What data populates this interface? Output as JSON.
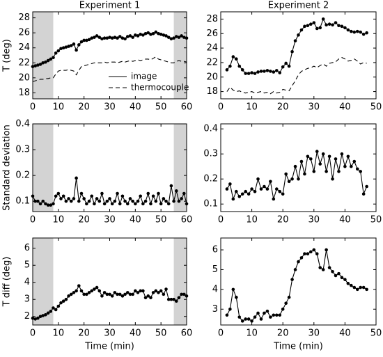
{
  "chart_data": [
    {
      "type": "line",
      "title": "Experiment 1",
      "ylabel": "T (deg)",
      "x": [
        0,
        1,
        2,
        3,
        4,
        5,
        6,
        7,
        8,
        9,
        10,
        11,
        12,
        13,
        14,
        15,
        16,
        17,
        18,
        19,
        20,
        21,
        22,
        23,
        24,
        25,
        26,
        27,
        28,
        29,
        30,
        31,
        32,
        33,
        34,
        35,
        36,
        37,
        38,
        39,
        40,
        41,
        42,
        43,
        44,
        45,
        46,
        47,
        48,
        49,
        50,
        51,
        52,
        53,
        54,
        55,
        56,
        57,
        58,
        59,
        60
      ],
      "series": [
        {
          "name": "image",
          "color": "#000000",
          "style": "solid",
          "markers": true,
          "values": [
            21.5,
            21.6,
            21.7,
            21.8,
            22.0,
            22.1,
            22.3,
            22.5,
            22.7,
            23.3,
            23.6,
            23.9,
            24.0,
            24.1,
            24.2,
            24.3,
            24.5,
            23.7,
            24.4,
            24.8,
            25.0,
            25.0,
            25.1,
            25.3,
            25.4,
            25.6,
            25.4,
            25.2,
            25.3,
            25.3,
            25.4,
            25.3,
            25.4,
            25.3,
            25.5,
            25.3,
            25.2,
            25.5,
            25.6,
            25.4,
            25.7,
            25.6,
            25.8,
            25.7,
            25.9,
            26.0,
            25.8,
            25.9,
            26.1,
            25.9,
            25.8,
            25.7,
            25.6,
            25.4,
            25.2,
            25.3,
            25.5,
            25.4,
            25.6,
            25.4,
            25.3
          ]
        },
        {
          "name": "thermocouple",
          "color": "#000000",
          "style": "dashed",
          "markers": false,
          "values": [
            19.5,
            19.6,
            19.7,
            19.8,
            19.8,
            19.9,
            19.9,
            20.0,
            20.0,
            20.5,
            20.9,
            21.0,
            21.0,
            21.0,
            21.1,
            21.0,
            20.9,
            20.4,
            21.0,
            21.5,
            21.6,
            21.7,
            21.8,
            21.9,
            22.0,
            22.0,
            22.0,
            22.0,
            22.1,
            22.0,
            22.1,
            22.1,
            22.1,
            22.0,
            22.1,
            22.2,
            22.1,
            22.2,
            22.3,
            22.2,
            22.3,
            22.4,
            22.3,
            22.4,
            22.5,
            22.5,
            22.4,
            22.6,
            22.8,
            22.5,
            22.4,
            22.3,
            22.2,
            22.1,
            22.0,
            22.0,
            22.2,
            22.3,
            22.2,
            22.2,
            22.1
          ]
        }
      ],
      "shaded": [
        [
          0,
          8
        ],
        [
          55,
          60
        ]
      ],
      "legend": "lower right",
      "xlim": [
        0,
        60
      ],
      "xticks": [
        0,
        10,
        20,
        30,
        40,
        50,
        60
      ],
      "ylim": [
        17.2,
        28.8
      ],
      "yticks": [
        18,
        20,
        22,
        24,
        26,
        28
      ]
    },
    {
      "type": "line",
      "title": "Experiment 2",
      "x": [
        2,
        3,
        4,
        5,
        6,
        7,
        8,
        9,
        10,
        11,
        12,
        13,
        14,
        15,
        16,
        17,
        18,
        19,
        20,
        21,
        22,
        23,
        24,
        25,
        26,
        27,
        28,
        29,
        30,
        31,
        32,
        33,
        34,
        35,
        36,
        37,
        38,
        39,
        40,
        41,
        42,
        43,
        44,
        45,
        46,
        47
      ],
      "series": [
        {
          "color": "#000000",
          "style": "solid",
          "markers": true,
          "values": [
            21.0,
            21.5,
            22.8,
            22.5,
            21.5,
            21.0,
            20.5,
            20.5,
            20.6,
            20.5,
            20.7,
            20.8,
            20.8,
            20.9,
            20.8,
            20.7,
            20.9,
            20.6,
            21.4,
            21.9,
            21.5,
            23.5,
            25.0,
            25.8,
            26.5,
            27.0,
            27.1,
            27.3,
            27.5,
            26.7,
            26.8,
            28.0,
            27.2,
            27.3,
            27.2,
            27.5,
            27.1,
            27.0,
            26.8,
            26.5,
            26.3,
            26.2,
            26.3,
            26.2,
            25.9,
            26.1
          ]
        },
        {
          "color": "#000000",
          "style": "dashed",
          "markers": false,
          "values": [
            18.0,
            18.6,
            18.2,
            18.0,
            18.1,
            17.9,
            17.8,
            17.9,
            18.0,
            17.8,
            17.9,
            18.0,
            17.8,
            17.9,
            17.7,
            18.0,
            17.8,
            17.9,
            18.3,
            18.2,
            18.1,
            18.8,
            19.5,
            20.3,
            20.8,
            21.0,
            21.2,
            21.3,
            21.5,
            21.3,
            21.6,
            21.8,
            21.5,
            21.9,
            22.0,
            22.1,
            22.5,
            22.7,
            22.5,
            22.2,
            22.3,
            22.5,
            22.2,
            21.8,
            22.0,
            21.9
          ]
        }
      ],
      "xlim": [
        0,
        50
      ],
      "xticks": [
        0,
        10,
        20,
        30,
        40,
        50
      ],
      "ylim": [
        17,
        29
      ],
      "yticks": [
        18,
        20,
        22,
        24,
        26,
        28
      ]
    },
    {
      "type": "line",
      "ylabel": "Standard deviation",
      "x": [
        0,
        1,
        2,
        3,
        4,
        5,
        6,
        7,
        8,
        9,
        10,
        11,
        12,
        13,
        14,
        15,
        16,
        17,
        18,
        19,
        20,
        21,
        22,
        23,
        24,
        25,
        26,
        27,
        28,
        29,
        30,
        31,
        32,
        33,
        34,
        35,
        36,
        37,
        38,
        39,
        40,
        41,
        42,
        43,
        44,
        45,
        46,
        47,
        48,
        49,
        50,
        51,
        52,
        53,
        54,
        55,
        56,
        57,
        58,
        59,
        60
      ],
      "series": [
        {
          "color": "#000000",
          "style": "solid",
          "markers": true,
          "values": [
            0.12,
            0.1,
            0.1,
            0.09,
            0.1,
            0.09,
            0.085,
            0.085,
            0.09,
            0.12,
            0.13,
            0.11,
            0.12,
            0.1,
            0.11,
            0.1,
            0.11,
            0.19,
            0.1,
            0.13,
            0.11,
            0.09,
            0.1,
            0.12,
            0.09,
            0.11,
            0.1,
            0.13,
            0.09,
            0.1,
            0.11,
            0.09,
            0.1,
            0.13,
            0.09,
            0.12,
            0.1,
            0.09,
            0.11,
            0.1,
            0.09,
            0.1,
            0.12,
            0.09,
            0.1,
            0.13,
            0.09,
            0.12,
            0.1,
            0.13,
            0.09,
            0.11,
            0.1,
            0.09,
            0.16,
            0.1,
            0.14,
            0.1,
            0.11,
            0.13,
            0.09
          ]
        }
      ],
      "shaded": [
        [
          0,
          8
        ],
        [
          55,
          60
        ]
      ],
      "xlim": [
        0,
        60
      ],
      "xticks": [
        0,
        10,
        20,
        30,
        40,
        50,
        60
      ],
      "ylim": [
        0.06,
        0.4
      ],
      "yticks": [
        0.1,
        0.2,
        0.3,
        0.4
      ]
    },
    {
      "type": "line",
      "x": [
        2,
        3,
        4,
        5,
        6,
        7,
        8,
        9,
        10,
        11,
        12,
        13,
        14,
        15,
        16,
        17,
        18,
        19,
        20,
        21,
        22,
        23,
        24,
        25,
        26,
        27,
        28,
        29,
        30,
        31,
        32,
        33,
        34,
        35,
        36,
        37,
        38,
        39,
        40,
        41,
        42,
        43,
        44,
        45,
        46,
        47
      ],
      "series": [
        {
          "color": "#000000",
          "style": "solid",
          "markers": true,
          "values": [
            0.16,
            0.18,
            0.12,
            0.15,
            0.13,
            0.14,
            0.15,
            0.14,
            0.16,
            0.15,
            0.2,
            0.16,
            0.17,
            0.16,
            0.19,
            0.12,
            0.16,
            0.15,
            0.14,
            0.22,
            0.19,
            0.2,
            0.25,
            0.2,
            0.27,
            0.22,
            0.29,
            0.28,
            0.23,
            0.31,
            0.26,
            0.3,
            0.23,
            0.29,
            0.2,
            0.28,
            0.23,
            0.3,
            0.25,
            0.29,
            0.25,
            0.27,
            0.24,
            0.23,
            0.14,
            0.17
          ]
        }
      ],
      "xlim": [
        0,
        50
      ],
      "xticks": [
        0,
        10,
        20,
        30,
        40,
        50
      ],
      "ylim": [
        0.07,
        0.42
      ],
      "yticks": [
        0.1,
        0.2,
        0.3,
        0.4
      ]
    },
    {
      "type": "line",
      "ylabel": "T diff (deg)",
      "xlabel": "Time (min)",
      "x": [
        0,
        1,
        2,
        3,
        4,
        5,
        6,
        7,
        8,
        9,
        10,
        11,
        12,
        13,
        14,
        15,
        16,
        17,
        18,
        19,
        20,
        21,
        22,
        23,
        24,
        25,
        26,
        27,
        28,
        29,
        30,
        31,
        32,
        33,
        34,
        35,
        36,
        37,
        38,
        39,
        40,
        41,
        42,
        43,
        44,
        45,
        46,
        47,
        48,
        49,
        50,
        51,
        52,
        53,
        54,
        55,
        56,
        57,
        58,
        59,
        60
      ],
      "series": [
        {
          "color": "#000000",
          "style": "solid",
          "markers": true,
          "values": [
            1.9,
            1.85,
            1.9,
            2.0,
            2.05,
            2.1,
            2.2,
            2.3,
            2.5,
            2.4,
            2.6,
            2.8,
            2.9,
            3.0,
            3.2,
            3.3,
            3.4,
            3.5,
            3.8,
            3.5,
            3.3,
            3.3,
            3.4,
            3.5,
            3.6,
            3.7,
            3.5,
            3.2,
            3.4,
            3.3,
            3.3,
            3.2,
            3.4,
            3.3,
            3.3,
            3.2,
            3.3,
            3.4,
            3.3,
            3.3,
            3.5,
            3.4,
            3.5,
            3.5,
            3.1,
            3.2,
            3.1,
            3.4,
            3.5,
            3.4,
            3.5,
            3.3,
            3.6,
            3.0,
            3.0,
            3.0,
            2.9,
            3.1,
            3.3,
            3.3,
            3.2
          ]
        }
      ],
      "shaded": [
        [
          0,
          8
        ],
        [
          55,
          60
        ]
      ],
      "xlim": [
        0,
        60
      ],
      "xticks": [
        0,
        10,
        20,
        30,
        40,
        50,
        60
      ],
      "ylim": [
        1.5,
        6.6
      ],
      "yticks": [
        2,
        3,
        4,
        5,
        6
      ]
    },
    {
      "type": "line",
      "xlabel": "Time (min)",
      "x": [
        2,
        3,
        4,
        5,
        6,
        7,
        8,
        9,
        10,
        11,
        12,
        13,
        14,
        15,
        16,
        17,
        18,
        19,
        20,
        21,
        22,
        23,
        24,
        25,
        26,
        27,
        28,
        29,
        30,
        31,
        32,
        33,
        34,
        35,
        36,
        37,
        38,
        39,
        40,
        41,
        42,
        43,
        44,
        45,
        46,
        47
      ],
      "series": [
        {
          "color": "#000000",
          "style": "solid",
          "markers": true,
          "values": [
            2.7,
            3.0,
            4.0,
            3.6,
            2.6,
            2.4,
            2.5,
            2.5,
            2.4,
            2.6,
            2.8,
            2.5,
            2.8,
            2.9,
            2.6,
            2.7,
            2.7,
            2.7,
            3.0,
            3.3,
            3.6,
            4.5,
            5.0,
            5.4,
            5.6,
            5.8,
            5.8,
            5.9,
            6.0,
            5.8,
            5.1,
            5.0,
            6.0,
            5.1,
            4.9,
            4.7,
            4.8,
            4.6,
            4.5,
            4.3,
            4.2,
            4.1,
            4.0,
            4.1,
            4.1,
            4.0
          ]
        }
      ],
      "xlim": [
        0,
        50
      ],
      "xticks": [
        0,
        10,
        20,
        30,
        40,
        50
      ],
      "ylim": [
        2.2,
        6.6
      ],
      "yticks": [
        3,
        4,
        5,
        6
      ]
    }
  ]
}
